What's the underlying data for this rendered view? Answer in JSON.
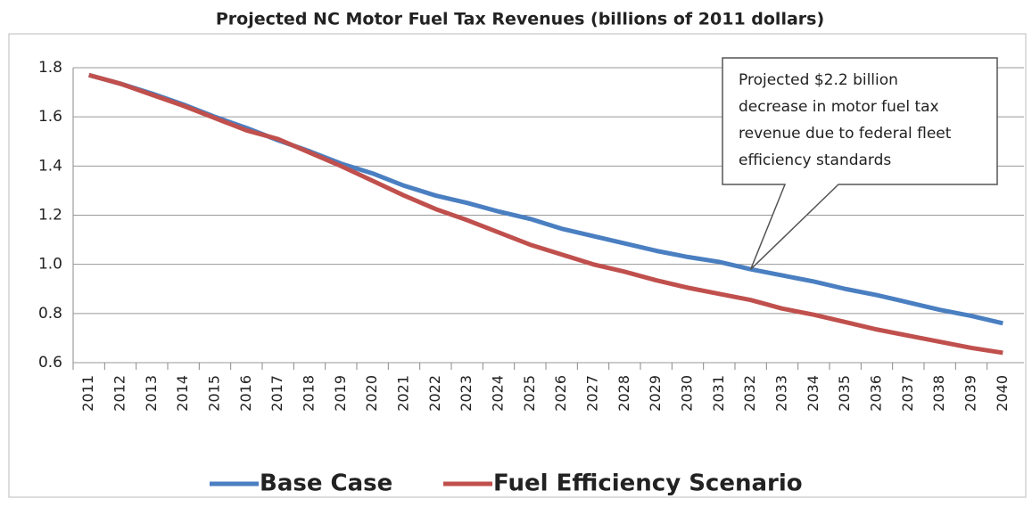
{
  "chart_data": {
    "type": "line",
    "title": "Projected NC Motor Fuel Tax Revenues (billions of 2011 dollars)",
    "categories": [
      "2011",
      "2012",
      "2013",
      "2014",
      "2015",
      "2016",
      "2017",
      "2018",
      "2019",
      "2020",
      "2021",
      "2022",
      "2023",
      "2024",
      "2025",
      "2026",
      "2027",
      "2028",
      "2029",
      "2030",
      "2031",
      "2032",
      "2033",
      "2034",
      "2035",
      "2036",
      "2037",
      "2038",
      "2039",
      "2040"
    ],
    "series": [
      {
        "name": "Base Case",
        "color": "#4a7fc1",
        "values": [
          1.77,
          1.735,
          1.695,
          1.65,
          1.6,
          1.555,
          1.505,
          1.46,
          1.41,
          1.37,
          1.32,
          1.28,
          1.25,
          1.215,
          1.185,
          1.145,
          1.115,
          1.085,
          1.055,
          1.03,
          1.01,
          0.98,
          0.955,
          0.93,
          0.9,
          0.875,
          0.845,
          0.815,
          0.79,
          0.76
        ]
      },
      {
        "name": "Fuel Efficiency Scenario",
        "color": "#c0504d",
        "values": [
          1.77,
          1.735,
          1.69,
          1.645,
          1.595,
          1.545,
          1.51,
          1.455,
          1.4,
          1.34,
          1.28,
          1.225,
          1.18,
          1.13,
          1.08,
          1.04,
          1.0,
          0.97,
          0.935,
          0.905,
          0.88,
          0.855,
          0.82,
          0.795,
          0.765,
          0.735,
          0.71,
          0.685,
          0.66,
          0.64
        ]
      }
    ],
    "ylim": [
      0.6,
      1.8
    ],
    "yticks": [
      {
        "value": 0.6,
        "label": "0.6"
      },
      {
        "value": 0.8,
        "label": "0.8"
      },
      {
        "value": 1.0,
        "label": "1.0"
      },
      {
        "value": 1.2,
        "label": "1.2"
      },
      {
        "value": 1.4,
        "label": "1.4"
      },
      {
        "value": 1.6,
        "label": "1.6"
      },
      {
        "value": 1.8,
        "label": "1.8"
      }
    ],
    "grid": true,
    "legend": "bottom",
    "annotation": [
      "Projected $2.2 billion",
      "decrease in motor fuel tax",
      "revenue due to federal fleet",
      "efficiency standards"
    ]
  }
}
